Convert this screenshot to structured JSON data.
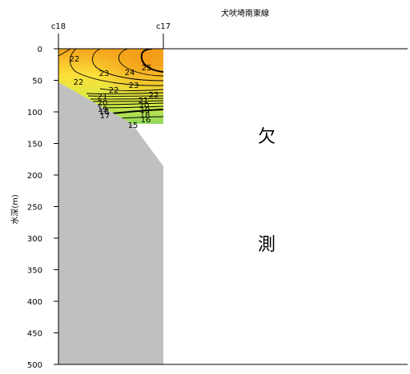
{
  "chart_data": {
    "type": "contour",
    "title": "犬吠埼南東線",
    "xlabel": "",
    "ylabel": "水深(m)",
    "stations": [
      "c18",
      "c17"
    ],
    "ylim": [
      0,
      500
    ],
    "y_ticks": [
      0,
      50,
      100,
      150,
      200,
      250,
      300,
      350,
      400,
      450,
      500
    ],
    "y_tick_labels": [
      "0",
      "50",
      "100",
      "150",
      "200",
      "250",
      "300",
      "350",
      "400",
      "450",
      "500"
    ],
    "data_max_depth": 120,
    "contour_levels": [
      14,
      15,
      16,
      17,
      18,
      19,
      20,
      21,
      22,
      23,
      24,
      25
    ],
    "contour_labels": [
      "22",
      "23",
      "24",
      "25",
      "22",
      "22",
      "23",
      "22",
      "21",
      "20",
      "19",
      "18",
      "17",
      "21",
      "20",
      "19",
      "18",
      "16",
      "15"
    ],
    "missing_text": [
      "欠",
      "測"
    ],
    "colors": {
      "warm": "#f5a41c",
      "mid": "#fbe03a",
      "cool": "#8fd85c",
      "bottom": "#c0c0c0"
    }
  }
}
